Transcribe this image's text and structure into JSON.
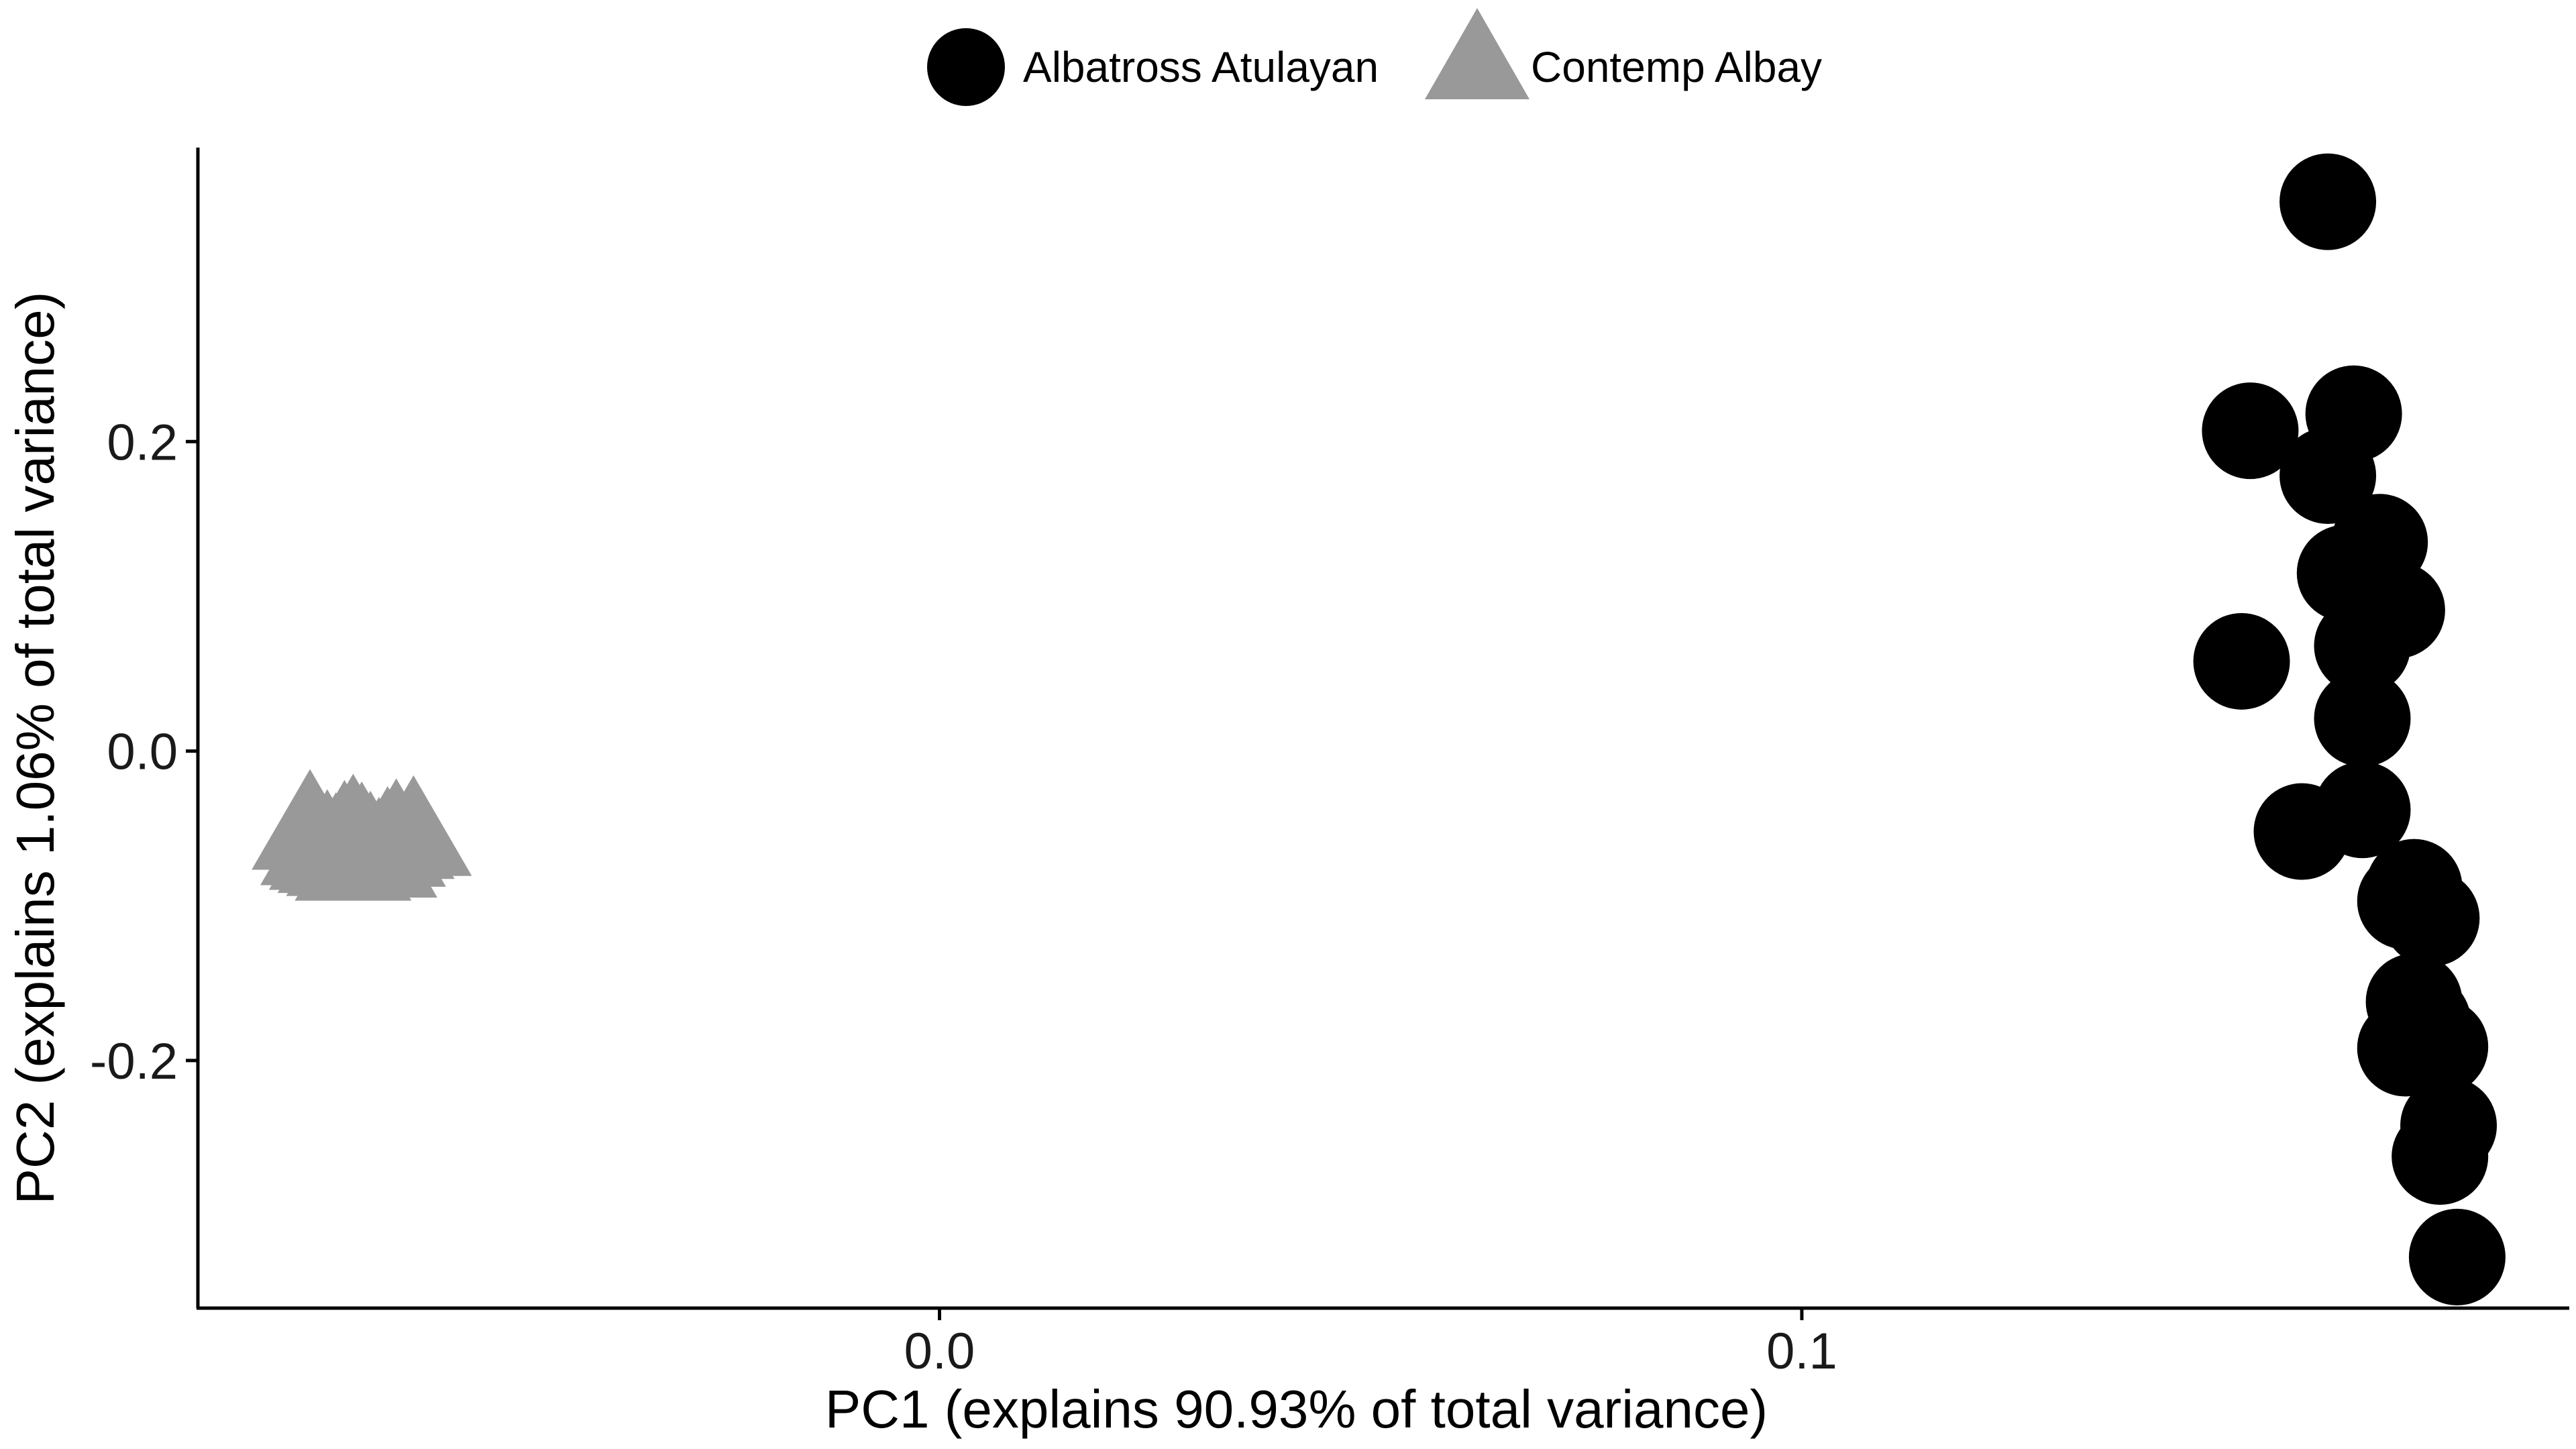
{
  "chart_data": {
    "type": "scatter",
    "title": "",
    "xlabel": "PC1 (explains 90.93% of total variance)",
    "ylabel": "PC2 (explains 1.06% of total variance)",
    "xlim": [
      -0.086,
      0.189
    ],
    "ylim": [
      -0.36,
      0.39
    ],
    "x_ticks": [
      {
        "value": 0.0,
        "label": "0.0"
      },
      {
        "value": 0.1,
        "label": "0.1"
      }
    ],
    "y_ticks": [
      {
        "value": 0.2,
        "label": "0.2"
      },
      {
        "value": 0.0,
        "label": "0.0"
      },
      {
        "value": -0.2,
        "label": "-0.2"
      }
    ],
    "grid": false,
    "legend_position": "top",
    "series": [
      {
        "name": "Albatross Atulayan",
        "marker": "circle",
        "color": "#000000",
        "points": [
          {
            "x": 0.161,
            "y": 0.355
          },
          {
            "x": 0.164,
            "y": 0.218
          },
          {
            "x": 0.152,
            "y": 0.207
          },
          {
            "x": 0.161,
            "y": 0.178
          },
          {
            "x": 0.167,
            "y": 0.135
          },
          {
            "x": 0.163,
            "y": 0.115
          },
          {
            "x": 0.169,
            "y": 0.091
          },
          {
            "x": 0.165,
            "y": 0.068
          },
          {
            "x": 0.151,
            "y": 0.058
          },
          {
            "x": 0.165,
            "y": 0.021
          },
          {
            "x": 0.165,
            "y": -0.038
          },
          {
            "x": 0.158,
            "y": -0.052
          },
          {
            "x": 0.171,
            "y": -0.088
          },
          {
            "x": 0.17,
            "y": -0.097
          },
          {
            "x": 0.173,
            "y": -0.108
          },
          {
            "x": 0.171,
            "y": -0.162
          },
          {
            "x": 0.172,
            "y": -0.175
          },
          {
            "x": 0.174,
            "y": -0.191
          },
          {
            "x": 0.17,
            "y": -0.192
          },
          {
            "x": 0.175,
            "y": -0.242
          },
          {
            "x": 0.174,
            "y": -0.262
          },
          {
            "x": 0.176,
            "y": -0.327
          }
        ]
      },
      {
        "name": "Contemp Albay",
        "marker": "triangle",
        "color": "#999999",
        "points": [
          {
            "x": -0.073,
            "y": -0.055
          },
          {
            "x": -0.072,
            "y": -0.065
          },
          {
            "x": -0.071,
            "y": -0.068
          },
          {
            "x": -0.07,
            "y": -0.07
          },
          {
            "x": -0.069,
            "y": -0.062
          },
          {
            "x": -0.069,
            "y": -0.072
          },
          {
            "x": -0.068,
            "y": -0.058
          },
          {
            "x": -0.068,
            "y": -0.075
          },
          {
            "x": -0.067,
            "y": -0.067
          },
          {
            "x": -0.067,
            "y": -0.063
          },
          {
            "x": -0.066,
            "y": -0.071
          },
          {
            "x": -0.066,
            "y": -0.069
          },
          {
            "x": -0.065,
            "y": -0.073
          },
          {
            "x": -0.064,
            "y": -0.066
          },
          {
            "x": -0.063,
            "y": -0.061
          },
          {
            "x": -0.061,
            "y": -0.059
          }
        ]
      }
    ]
  }
}
